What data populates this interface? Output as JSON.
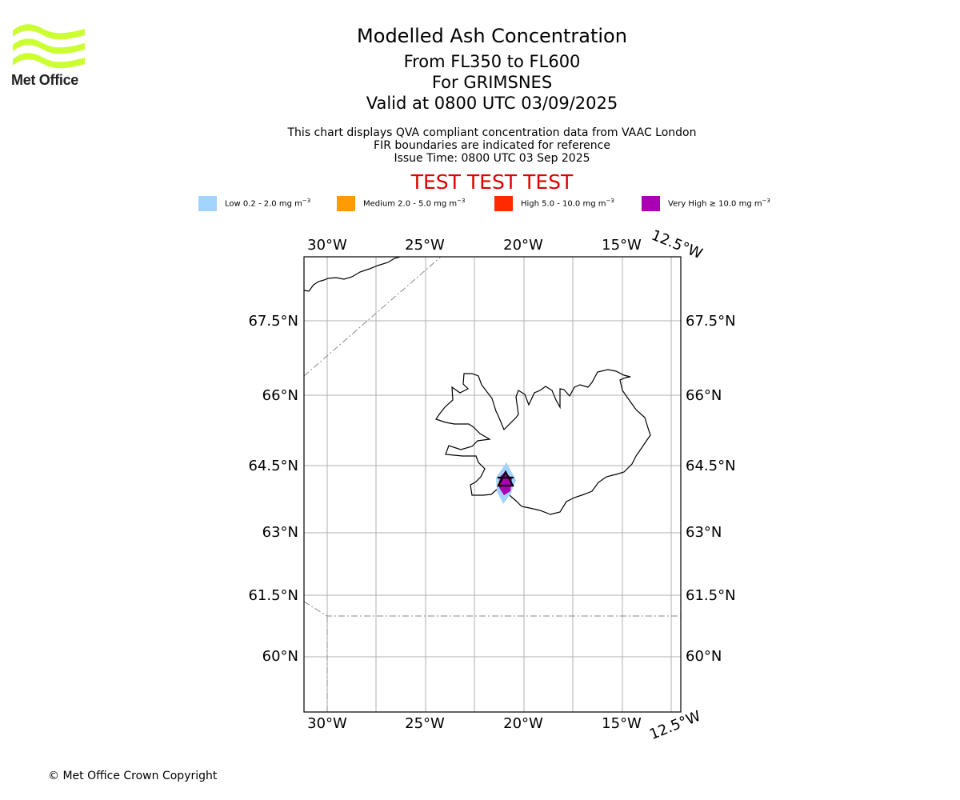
{
  "logo": {
    "text": "Met Office",
    "color": "#ccff33"
  },
  "title": {
    "main": "Modelled Ash Concentration",
    "levels": "From FL350 to FL600",
    "volcano": "For GRIMSNES",
    "valid": "Valid at 0800 UTC 03/09/2025"
  },
  "notes": {
    "line1": "This chart displays QVA compliant concentration data from VAAC London",
    "line2": "FIR boundaries are indicated for reference",
    "line3": "Issue Time: 0800 UTC 03 Sep 2025"
  },
  "test_banner": "TEST TEST TEST",
  "legend": [
    {
      "label": "Low 0.2 - 2.0 mg m",
      "unit_exp": "−3",
      "color": "#a3d4fd"
    },
    {
      "label": "Medium 2.0 - 5.0 mg m",
      "unit_exp": "−3",
      "color": "#ff9c05"
    },
    {
      "label": "High 5.0 - 10.0 mg m",
      "unit_exp": "−3",
      "color": "#ff2a00"
    },
    {
      "label": "Very High  ≥  10.0 mg m",
      "unit_exp": "−3",
      "color": "#aa00b3"
    }
  ],
  "map": {
    "lon_labels": [
      "30°W",
      "25°W",
      "20°W",
      "15°W",
      "12.5°W"
    ],
    "lat_labels": [
      "67.5°N",
      "66°N",
      "64.5°N",
      "63°N",
      "61.5°N",
      "60°N"
    ],
    "volcano_marker": "triangle"
  },
  "copyright": "© Met Office Crown Copyright"
}
